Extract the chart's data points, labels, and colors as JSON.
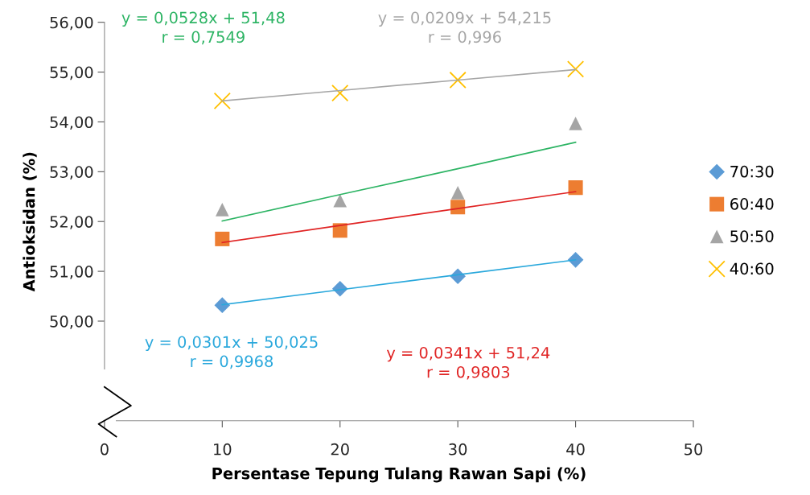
{
  "chart_data": {
    "type": "scatter",
    "xlabel": "Persentase Tepung Tulang Rawan Sapi (%)",
    "ylabel": "Antioksidan (%)",
    "xlim": [
      0,
      50
    ],
    "xticks": [
      0,
      10,
      20,
      30,
      40,
      50
    ],
    "ylim": [
      48,
      56
    ],
    "yticks": [
      {
        "value": 50,
        "label": "50,00"
      },
      {
        "value": 51,
        "label": "51,00"
      },
      {
        "value": 52,
        "label": "52,00"
      },
      {
        "value": 53,
        "label": "53,00"
      },
      {
        "value": 54,
        "label": "54,00"
      },
      {
        "value": 55,
        "label": "55,00"
      },
      {
        "value": 56,
        "label": "56,00"
      }
    ],
    "x": [
      10,
      20,
      30,
      40
    ],
    "series": [
      {
        "name": "70:30",
        "marker": "diamond",
        "color": "#5b9bd5",
        "values": [
          50.32,
          50.65,
          50.9,
          51.23
        ]
      },
      {
        "name": "60:40",
        "marker": "square",
        "color": "#ed7d31",
        "values": [
          51.65,
          51.82,
          52.29,
          52.68
        ]
      },
      {
        "name": "50:50",
        "marker": "triangle",
        "color": "#a5a5a5",
        "values": [
          52.24,
          52.42,
          52.58,
          53.97
        ]
      },
      {
        "name": "40:60",
        "marker": "cross",
        "color": "#ffc000",
        "values": [
          54.42,
          54.58,
          54.84,
          55.06
        ]
      },
      {
        "type": "line",
        "color": "#2aa8dc",
        "values": [
          50.33,
          50.63,
          50.93,
          51.23
        ]
      },
      {
        "type": "line",
        "color": "#e02424",
        "values": [
          51.58,
          51.92,
          52.26,
          52.6
        ]
      },
      {
        "type": "line",
        "color": "#2db464",
        "values": [
          52.01,
          52.54,
          53.06,
          53.59
        ]
      },
      {
        "type": "line",
        "color": "#a6a6a6",
        "values": [
          54.42,
          54.63,
          54.84,
          55.05
        ]
      }
    ],
    "annotations": [
      "y = 0,0301x + 50,025\nr = 0,9968",
      "y = 0,0341x + 51,24\nr = 0,9803",
      "y = 0,0528x + 51,48\nr = 0,7549",
      "y = 0,0209x + 54,215\nr = 0,996"
    ],
    "legend": "right",
    "grid": false
  }
}
